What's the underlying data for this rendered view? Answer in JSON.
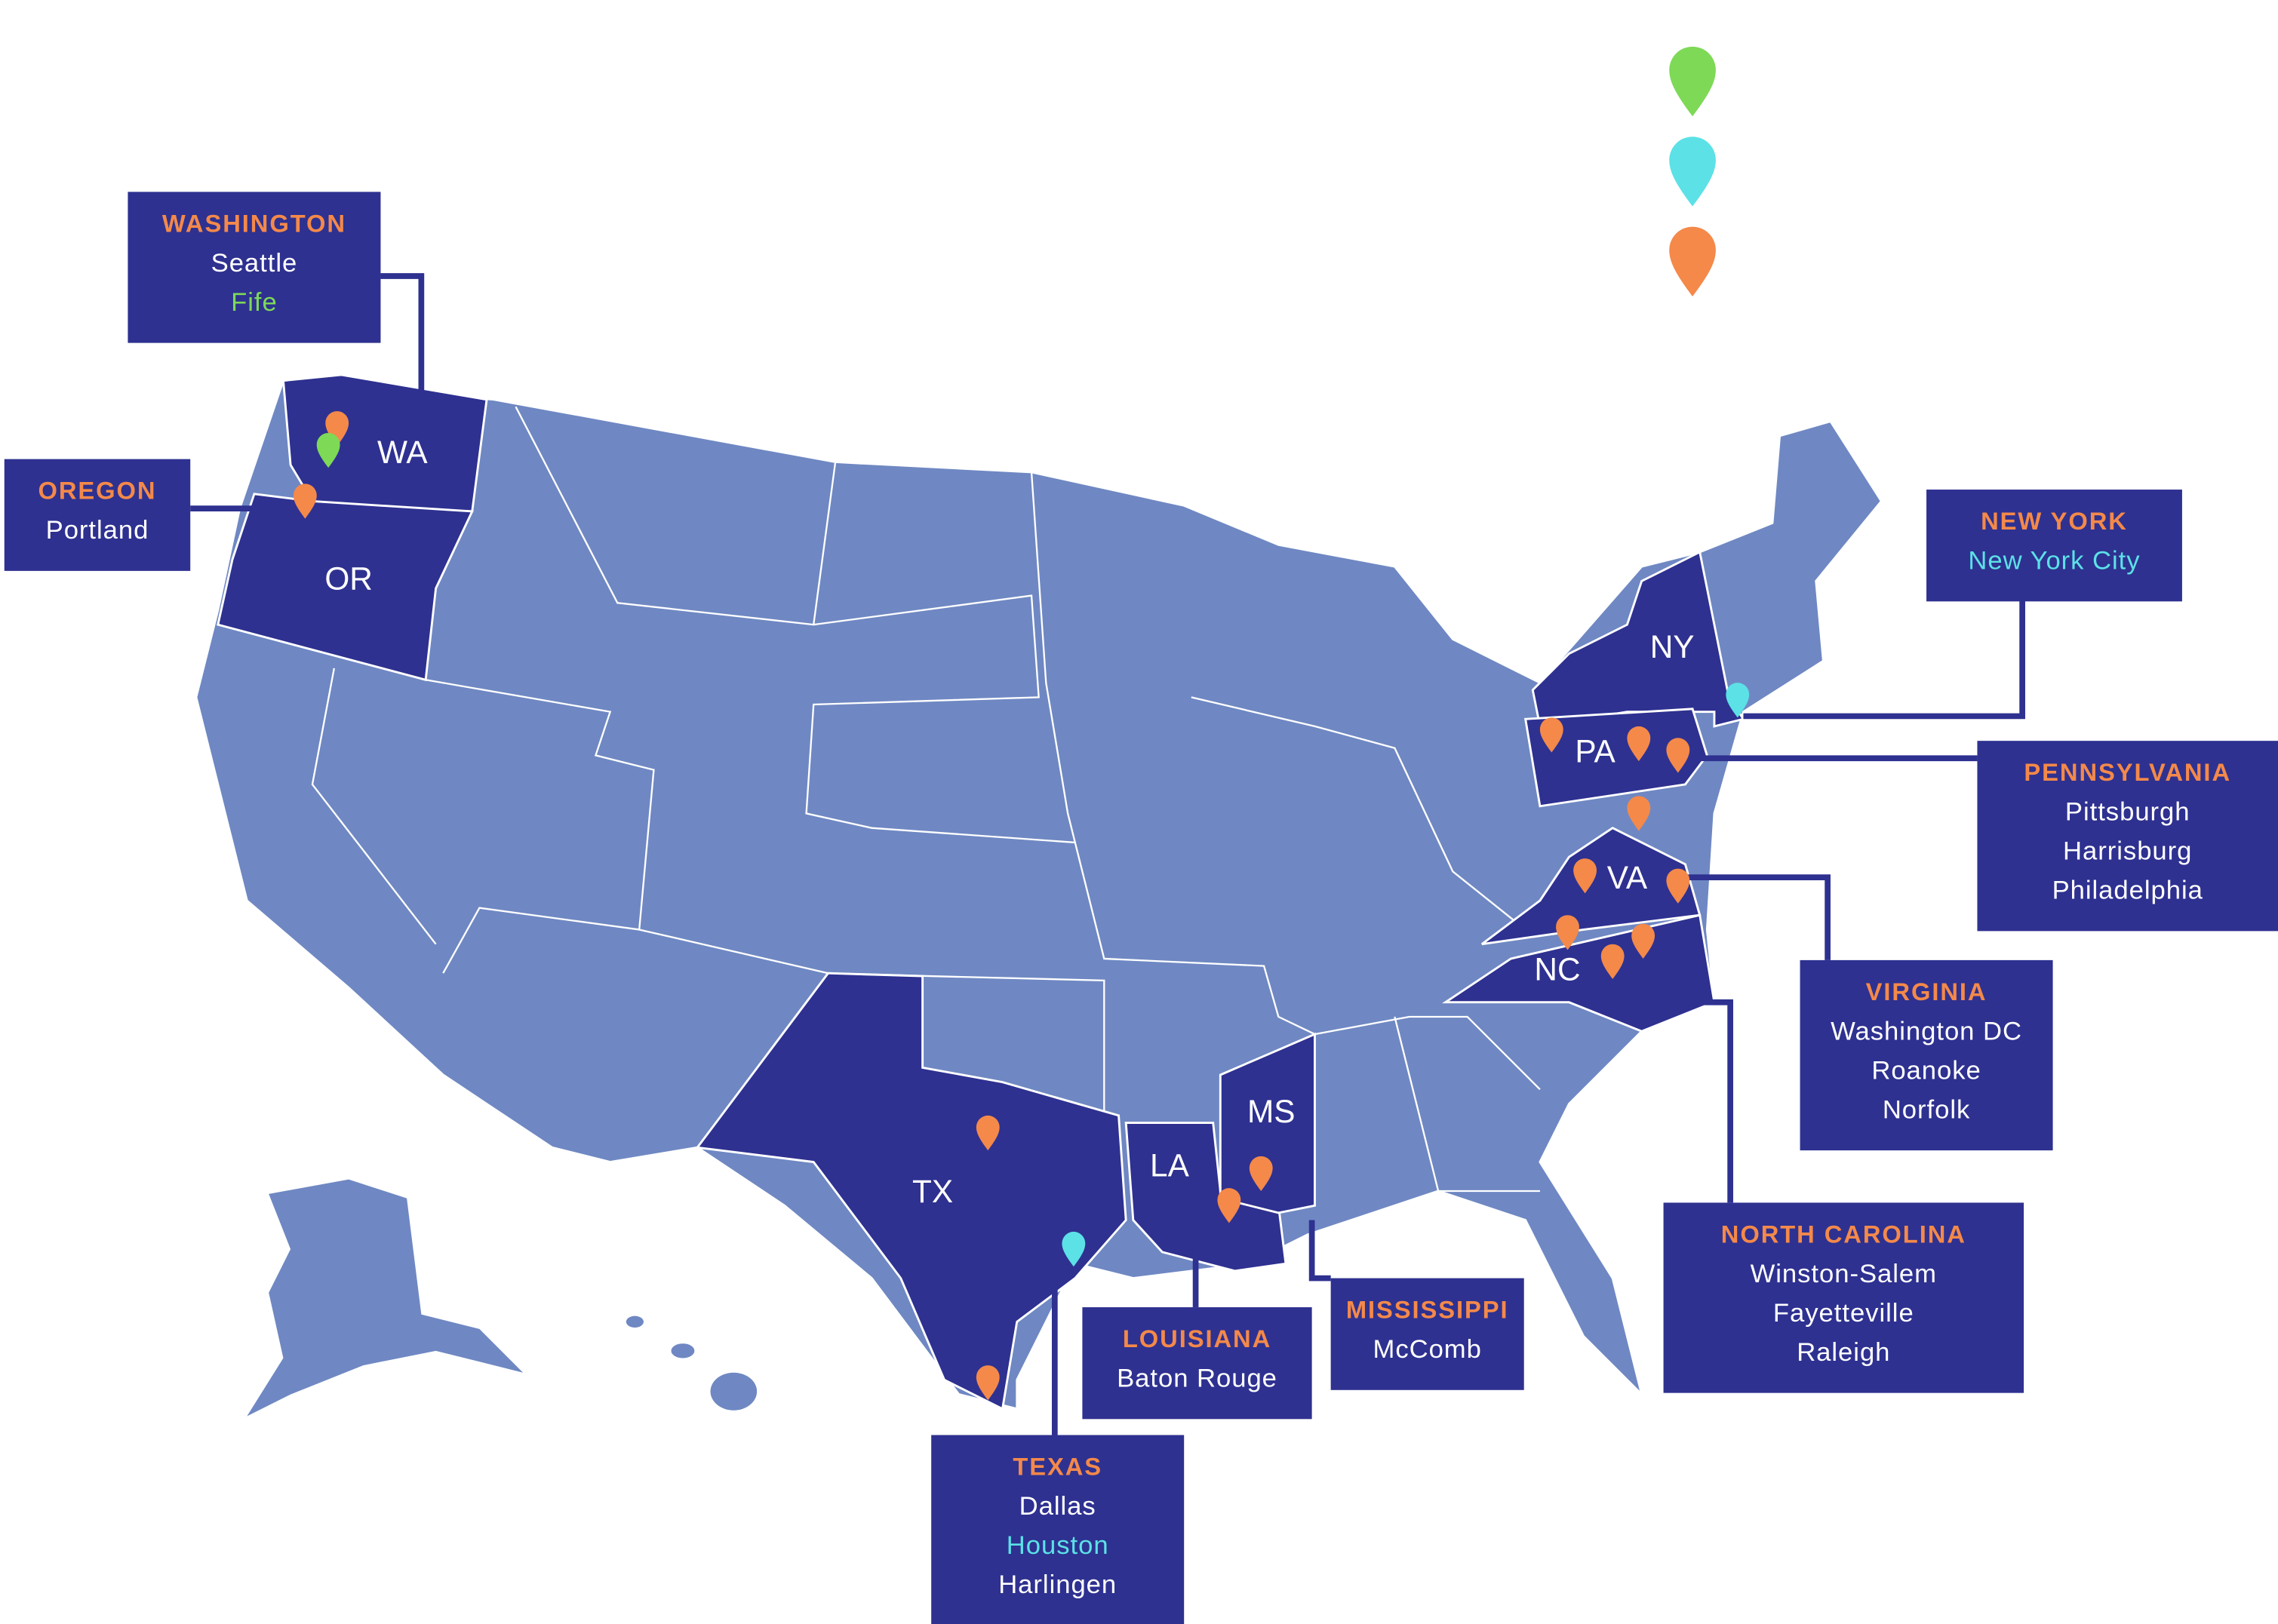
{
  "map": {
    "state_labels": [
      "WA",
      "OR",
      "NY",
      "PA",
      "VA",
      "NC",
      "TX",
      "LA",
      "MS"
    ],
    "callouts": [
      {
        "state": "WASHINGTON",
        "cities": [
          {
            "name": "Seattle",
            "color": "#ffffff"
          },
          {
            "name": "Fife",
            "color": "#7ed957"
          }
        ]
      },
      {
        "state": "OREGON",
        "cities": [
          {
            "name": "Portland",
            "color": "#ffffff"
          }
        ]
      },
      {
        "state": "NEW YORK",
        "cities": [
          {
            "name": "New York City",
            "color": "#5ce1e6"
          }
        ]
      },
      {
        "state": "PENNSYLVANIA",
        "cities": [
          {
            "name": "Pittsburgh",
            "color": "#ffffff"
          },
          {
            "name": "Harrisburg",
            "color": "#ffffff"
          },
          {
            "name": "Philadelphia",
            "color": "#ffffff"
          }
        ]
      },
      {
        "state": "VIRGINIA",
        "cities": [
          {
            "name": "Washington DC",
            "color": "#ffffff"
          },
          {
            "name": "Roanoke",
            "color": "#ffffff"
          },
          {
            "name": "Norfolk",
            "color": "#ffffff"
          }
        ]
      },
      {
        "state": "NORTH CAROLINA",
        "cities": [
          {
            "name": "Winston-Salem",
            "color": "#ffffff"
          },
          {
            "name": "Fayetteville",
            "color": "#ffffff"
          },
          {
            "name": "Raleigh",
            "color": "#ffffff"
          }
        ]
      },
      {
        "state": "MISSISSIPPI",
        "cities": [
          {
            "name": "McComb",
            "color": "#ffffff"
          }
        ]
      },
      {
        "state": "LOUISIANA",
        "cities": [
          {
            "name": "Baton Rouge",
            "color": "#ffffff"
          }
        ]
      },
      {
        "state": "TEXAS",
        "cities": [
          {
            "name": "Dallas",
            "color": "#ffffff"
          },
          {
            "name": "Houston",
            "color": "#5ce1e6"
          },
          {
            "name": "Harlingen",
            "color": "#ffffff"
          }
        ]
      }
    ]
  }
}
